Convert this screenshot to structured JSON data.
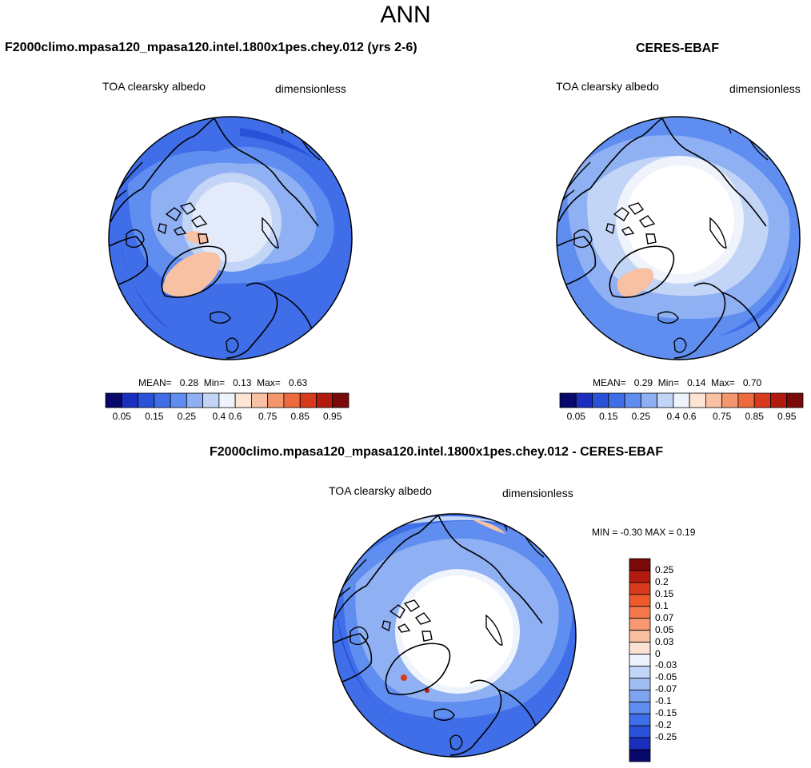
{
  "title": "ANN",
  "panels": [
    {
      "id": "model",
      "title": "F2000climo.mpasa120_mpasa120.intel.1800x1pes.chey.012 (yrs 2-6)",
      "variable": "TOA clearsky albedo",
      "units": "dimensionless",
      "stats": {
        "mean_label": "MEAN=",
        "mean": "0.28",
        "min_label": "Min=",
        "min": "0.13",
        "max_label": "Max=",
        "max": "0.63"
      }
    },
    {
      "id": "obs",
      "title": "CERES-EBAF",
      "variable": "TOA clearsky albedo",
      "units": "dimensionless",
      "stats": {
        "mean_label": "MEAN=",
        "mean": "0.29",
        "min_label": "Min=",
        "min": "0.14",
        "max_label": "Max=",
        "max": "0.70"
      }
    },
    {
      "id": "diff",
      "title": "F2000climo.mpasa120_mpasa120.intel.1800x1pes.chey.012 - CERES-EBAF",
      "variable": "TOA clearsky albedo",
      "units": "dimensionless",
      "stats_text": "MIN =  -0.30 MAX =   0.19"
    }
  ],
  "colorbar_abs": {
    "colors": [
      "#08086b",
      "#1a2ec0",
      "#2a52d8",
      "#3f6ee8",
      "#5f8ef0",
      "#8fb0f3",
      "#c2d5f7",
      "#eef3fc",
      "#fde4d3",
      "#f8c1a3",
      "#f4966e",
      "#ee6a3f",
      "#d83a1c",
      "#b21c0f",
      "#7a0a0a"
    ],
    "tick_labels": [
      "0.05",
      "0.15",
      "0.25",
      "0.4",
      "0.6",
      "0.75",
      "0.85",
      "0.95"
    ]
  },
  "colorbar_diff": {
    "colors_top_to_bottom": [
      "#7a0a0a",
      "#b21c0f",
      "#d83a1c",
      "#ee5a2c",
      "#f4784b",
      "#f79a74",
      "#f9bda0",
      "#fbe3d4",
      "#eef3fc",
      "#c2d5f7",
      "#a0bef3",
      "#7fa4ef",
      "#5f8ef0",
      "#3f6ee8",
      "#2a52d8",
      "#1a2ec0",
      "#08086b"
    ],
    "tick_labels": [
      "0.25",
      "0.2",
      "0.15",
      "0.1",
      "0.07",
      "0.05",
      "0.03",
      "0",
      "-0.03",
      "-0.05",
      "-0.07",
      "-0.1",
      "-0.15",
      "-0.2",
      "-0.25"
    ]
  }
}
